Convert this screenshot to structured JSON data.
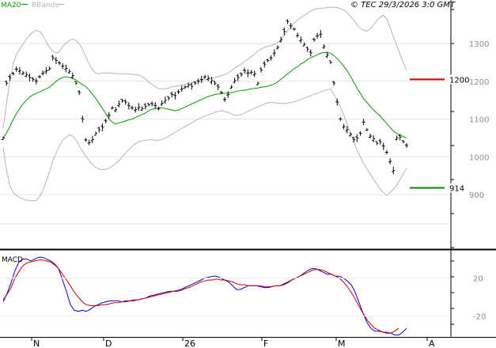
{
  "header": {
    "legend": [
      {
        "label": "MA20",
        "color": "#00a000"
      },
      {
        "label": "BBands",
        "color": "#b5b5b5"
      }
    ],
    "copyright": "© TEC 29/3/2026 3:0 GMT"
  },
  "chart_data": [
    {
      "type": "line",
      "title": "",
      "ylim": [
        760,
        1390
      ],
      "y_ticks": [
        "1300",
        "1200",
        "1100",
        "1000",
        "900"
      ],
      "x_ticks": [
        "N",
        "D",
        "26",
        "F",
        "M",
        "A"
      ],
      "levels": [
        {
          "label": "1200",
          "value": 1205,
          "color": "#cc0000"
        },
        {
          "label": "914",
          "value": 918,
          "color": "#008800"
        }
      ],
      "series": [
        {
          "name": "Price",
          "kind": "ohlc_bars",
          "color": "#000000",
          "values": [
            1050,
            1195,
            1210,
            1220,
            1232,
            1228,
            1222,
            1218,
            1210,
            1205,
            1200,
            1212,
            1222,
            1228,
            1234,
            1262,
            1255,
            1248,
            1240,
            1234,
            1226,
            1215,
            1195,
            1170,
            1100,
            1045,
            1038,
            1046,
            1062,
            1072,
            1078,
            1095,
            1110,
            1130,
            1125,
            1140,
            1148,
            1145,
            1135,
            1130,
            1125,
            1132,
            1128,
            1134,
            1138,
            1140,
            1136,
            1128,
            1142,
            1150,
            1155,
            1165,
            1162,
            1172,
            1180,
            1185,
            1190,
            1187,
            1195,
            1200,
            1205,
            1212,
            1208,
            1202,
            1195,
            1185,
            1170,
            1152,
            1165,
            1185,
            1202,
            1210,
            1218,
            1228,
            1222,
            1224,
            1220,
            1195,
            1230,
            1245,
            1255,
            1262,
            1275,
            1290,
            1310,
            1332,
            1358,
            1346,
            1338,
            1322,
            1310,
            1298,
            1285,
            1275,
            1310,
            1320,
            1325,
            1292,
            1270,
            1250,
            1195,
            1145,
            1100,
            1080,
            1072,
            1060,
            1046,
            1050,
            1062,
            1092,
            1072,
            1055,
            1048,
            1036,
            1040,
            1028,
            1012,
            988,
            964,
            1050,
            1052,
            1040,
            1030
          ]
        },
        {
          "name": "MA20",
          "color": "#00a000",
          "values": [
            1050,
            1063,
            1080,
            1098,
            1114,
            1128,
            1140,
            1150,
            1158,
            1164,
            1168,
            1172,
            1176,
            1180,
            1184,
            1192,
            1200,
            1206,
            1210,
            1212,
            1210,
            1208,
            1203,
            1197,
            1191,
            1186,
            1177,
            1166,
            1155,
            1142,
            1128,
            1115,
            1100,
            1092,
            1087,
            1090,
            1092,
            1095,
            1098,
            1100,
            1104,
            1108,
            1112,
            1116,
            1122,
            1126,
            1128,
            1130,
            1130,
            1128,
            1126,
            1124,
            1122,
            1124,
            1128,
            1132,
            1136,
            1140,
            1144,
            1148,
            1152,
            1156,
            1160,
            1162,
            1165,
            1166,
            1168,
            1168,
            1169,
            1170,
            1172,
            1174,
            1176,
            1176,
            1178,
            1180,
            1181,
            1182,
            1184,
            1185,
            1187,
            1190,
            1193,
            1198,
            1206,
            1212,
            1220,
            1226,
            1234,
            1238,
            1246,
            1250,
            1258,
            1262,
            1266,
            1270,
            1274,
            1276,
            1276,
            1274,
            1268,
            1260,
            1250,
            1240,
            1228,
            1214,
            1198,
            1182,
            1168,
            1154,
            1144,
            1134,
            1124,
            1116,
            1108,
            1098,
            1088,
            1078,
            1068,
            1062,
            1058,
            1054,
            1050
          ]
        },
        {
          "name": "BBand upper",
          "color": "#b5b5b5",
          "values": [
            1075,
            1140,
            1200,
            1245,
            1270,
            1285,
            1298,
            1312,
            1322,
            1330,
            1335,
            1332,
            1322,
            1305,
            1290,
            1280,
            1275,
            1278,
            1292,
            1300,
            1308,
            1312,
            1308,
            1300,
            1285,
            1265,
            1245,
            1230,
            1222,
            1220,
            1222,
            1222,
            1222,
            1221,
            1221,
            1220,
            1220,
            1220,
            1219,
            1219,
            1218,
            1216,
            1212,
            1206,
            1198,
            1192,
            1186,
            1180,
            1180,
            1180,
            1182,
            1185,
            1187,
            1188,
            1190,
            1192,
            1194,
            1196,
            1198,
            1200,
            1202,
            1204,
            1206,
            1208,
            1210,
            1212,
            1215,
            1218,
            1222,
            1228,
            1235,
            1240,
            1246,
            1252,
            1258,
            1265,
            1272,
            1280,
            1285,
            1290,
            1292,
            1294,
            1298,
            1302,
            1310,
            1322,
            1334,
            1346,
            1354,
            1362,
            1368,
            1374,
            1380,
            1386,
            1390,
            1392,
            1393,
            1394,
            1395,
            1396,
            1396,
            1395,
            1392,
            1388,
            1382,
            1372,
            1362,
            1350,
            1340,
            1335,
            1333,
            1338,
            1350,
            1360,
            1370,
            1375,
            1365,
            1342,
            1318,
            1295,
            1272,
            1250,
            1228
          ]
        },
        {
          "name": "BBand lower",
          "color": "#b5b5b5",
          "values": [
            1025,
            965,
            925,
            905,
            898,
            893,
            888,
            886,
            884,
            884,
            885,
            895,
            910,
            935,
            960,
            990,
            1010,
            1030,
            1044,
            1052,
            1058,
            1055,
            1045,
            1030,
            1015,
            1002,
            990,
            980,
            972,
            968,
            966,
            967,
            970,
            975,
            982,
            990,
            1000,
            1010,
            1020,
            1028,
            1035,
            1040,
            1042,
            1044,
            1045,
            1045,
            1044,
            1044,
            1046,
            1050,
            1055,
            1060,
            1065,
            1070,
            1075,
            1080,
            1085,
            1090,
            1095,
            1100,
            1104,
            1108,
            1112,
            1114,
            1118,
            1120,
            1122,
            1120,
            1118,
            1114,
            1110,
            1110,
            1112,
            1116,
            1120,
            1125,
            1129,
            1132,
            1136,
            1140,
            1143,
            1144,
            1143,
            1142,
            1142,
            1141,
            1142,
            1144,
            1146,
            1148,
            1152,
            1155,
            1158,
            1162,
            1166,
            1168,
            1172,
            1175,
            1178,
            1180,
            1165,
            1150,
            1130,
            1110,
            1088,
            1065,
            1040,
            1018,
            1000,
            982,
            968,
            955,
            940,
            928,
            915,
            905,
            898,
            905,
            915,
            925,
            940,
            955,
            970
          ]
        }
      ]
    },
    {
      "type": "line",
      "title": "MACD",
      "ylim": [
        -42,
        48
      ],
      "y_ticks": [
        "20",
        "-20"
      ],
      "series": [
        {
          "name": "MACD",
          "color": "#0000cc",
          "values": [
            -5,
            4,
            15,
            28,
            37,
            40,
            40,
            38,
            40,
            42,
            42,
            40,
            38,
            35,
            30,
            18,
            6,
            -8,
            -14,
            -15,
            -14,
            -15,
            -13,
            -10,
            -8,
            -6,
            -5,
            -4,
            -4,
            -4,
            -5,
            -4,
            -4,
            -3,
            -3,
            -2,
            -1,
            1,
            2,
            3,
            4,
            5,
            6,
            6,
            7,
            8,
            10,
            12,
            14,
            16,
            18,
            20,
            21,
            22,
            22,
            20,
            18,
            16,
            12,
            8,
            8,
            10,
            12,
            12,
            12,
            11,
            10,
            10,
            11,
            12,
            12,
            14,
            16,
            18,
            20,
            22,
            25,
            28,
            30,
            30,
            28,
            26,
            24,
            24,
            22,
            22,
            20,
            17,
            13,
            5,
            -6,
            -17,
            -27,
            -33,
            -36,
            -36,
            -37,
            -38,
            -38,
            -40,
            -40,
            -37,
            -33
          ]
        },
        {
          "name": "Signal",
          "color": "#cc0000",
          "values": [
            -3,
            3,
            10,
            20,
            27,
            33,
            36,
            37,
            38,
            39,
            39,
            38,
            37,
            34,
            30,
            24,
            18,
            12,
            5,
            0,
            -5,
            -8,
            -9,
            -9,
            -9,
            -8,
            -8,
            -7,
            -6,
            -6,
            -5,
            -5,
            -4,
            -4,
            -3,
            -2,
            -1,
            0,
            1,
            2,
            3,
            4,
            5,
            6,
            6,
            7,
            9,
            10,
            12,
            14,
            16,
            17,
            18,
            18,
            19,
            18,
            18,
            17,
            16,
            14,
            13,
            13,
            12,
            12,
            12,
            12,
            11,
            11,
            11,
            12,
            12,
            13,
            15,
            18,
            20,
            22,
            24,
            26,
            28,
            29,
            29,
            28,
            26,
            24,
            22,
            20,
            16,
            11,
            5,
            -2,
            -10,
            -17,
            -24,
            -29,
            -33,
            -35,
            -37,
            -37,
            -38,
            -36,
            -33
          ]
        }
      ]
    }
  ]
}
